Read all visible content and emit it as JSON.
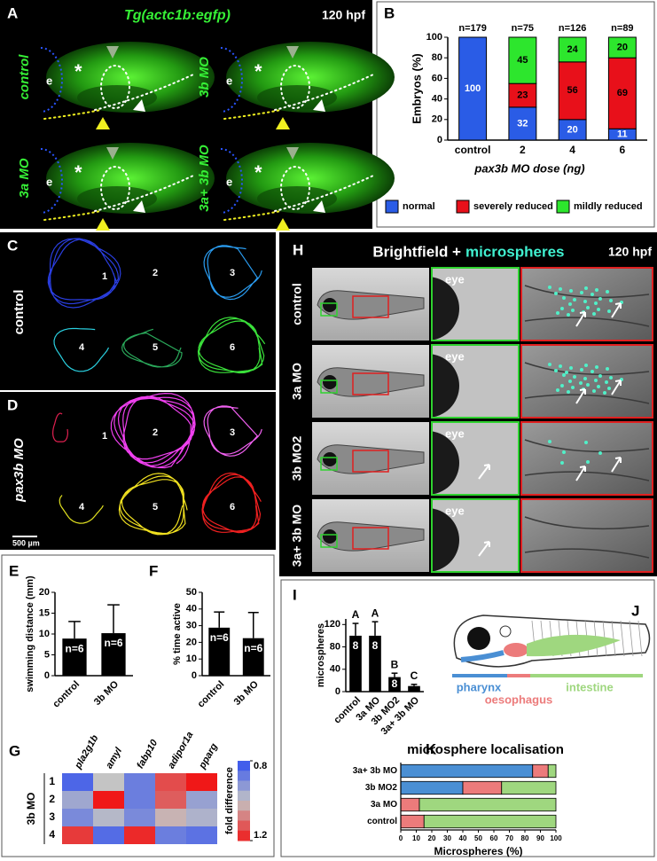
{
  "panel_a": {
    "letter": "A",
    "title": "Tg(actc1b:egfp)",
    "stage": "120 hpf",
    "rows": [
      "control",
      "3b MO",
      "3a MO",
      "3a+ 3b MO"
    ],
    "eye": "e",
    "star": "*"
  },
  "panel_c": {
    "letter": "C",
    "label": "control",
    "tracks": [
      "1",
      "2",
      "3",
      "4",
      "5",
      "6"
    ]
  },
  "panel_d": {
    "letter": "D",
    "label": "pax3b MO",
    "tracks": [
      "1",
      "2",
      "3",
      "4",
      "5",
      "6"
    ],
    "scale_bar": "500 µm"
  },
  "panel_h": {
    "letter": "H",
    "title_a": "Brightfield +",
    "title_b": "microspheres",
    "stage": "120 hpf",
    "rows": [
      "control",
      "3a MO",
      "3b MO2",
      "3a+ 3b MO"
    ],
    "eye": "eye"
  },
  "panel_j": {
    "letter": "J"
  },
  "chart_data": [
    {
      "type": "stacked_bar",
      "letter": "B",
      "ylabel": "Embryos (%)",
      "xlabel": "pax3b MO dose (ng)",
      "categories": [
        "control",
        "2",
        "4",
        "6"
      ],
      "n_labels": [
        "n=179",
        "n=75",
        "n=126",
        "n=89"
      ],
      "series": [
        {
          "name": "normal",
          "color": "#2a5ce6",
          "values": [
            100,
            32,
            20,
            11
          ]
        },
        {
          "name": "severely reduced",
          "color": "#e8101a",
          "values": [
            0,
            23,
            56,
            69
          ]
        },
        {
          "name": "mildly reduced",
          "color": "#2de62d",
          "values": [
            0,
            45,
            24,
            20
          ]
        }
      ],
      "ylim": [
        0,
        100
      ],
      "yticks": [
        0,
        20,
        40,
        60,
        80,
        100
      ],
      "legend": "bottom"
    },
    {
      "type": "bar",
      "letter": "E",
      "ylabel": "swimming distance (mm)",
      "categories": [
        "control",
        "3b MO"
      ],
      "values": [
        8.9,
        10.2
      ],
      "errors": [
        4.1,
        6.8
      ],
      "bar_labels": [
        "n=6",
        "n=6"
      ],
      "color": "#000000",
      "ylim": [
        0,
        20
      ],
      "yticks": [
        0,
        5,
        10,
        15,
        20
      ]
    },
    {
      "type": "bar",
      "letter": "F",
      "ylabel": "% time active",
      "categories": [
        "control",
        "3b MO"
      ],
      "values": [
        28.8,
        22.5
      ],
      "errors": [
        9.4,
        15.4
      ],
      "bar_labels": [
        "n=6",
        "n=6"
      ],
      "color": "#000000",
      "ylim": [
        0,
        50
      ],
      "yticks": [
        0,
        10,
        20,
        30,
        40,
        50
      ]
    },
    {
      "type": "heatmap",
      "letter": "G",
      "columns": [
        "pla2g1b",
        "amyl",
        "fabp10",
        "adipor1a",
        "pparg"
      ],
      "rows": [
        "1",
        "2",
        "3",
        "4"
      ],
      "row_title": "3b MO",
      "values": [
        [
          0.84,
          1.0,
          0.88,
          1.14,
          1.2
        ],
        [
          0.95,
          1.2,
          0.88,
          1.12,
          0.94
        ],
        [
          0.9,
          0.98,
          0.9,
          1.02,
          0.97
        ],
        [
          1.16,
          0.85,
          1.18,
          0.88,
          0.86
        ]
      ],
      "colorbar_label": "fold difference",
      "clim": [
        0.8,
        1.2
      ],
      "cticks": [
        0.8,
        1.2
      ],
      "low_color": "#2f4ff0",
      "mid_color": "#c4c4c4",
      "high_color": "#f01818"
    },
    {
      "type": "bar",
      "letter": "I",
      "ylabel": "microspheres",
      "categories": [
        "control",
        "3a MO",
        "3b MO2",
        "3a+ 3b MO"
      ],
      "values": [
        100,
        100,
        26,
        10
      ],
      "errors": [
        22,
        25,
        7,
        3
      ],
      "bar_labels": [
        "8",
        "8",
        "8",
        null
      ],
      "group_labels": [
        "A",
        "A",
        "B",
        "C"
      ],
      "color": "#000000",
      "ylim": [
        0,
        130
      ],
      "yticks": [
        0,
        40,
        80,
        120
      ]
    },
    {
      "type": "stacked_hbar",
      "letter": "K",
      "title": "microsphere localisation",
      "xlabel": "Microspheres (%)",
      "categories": [
        "control",
        "3a MO",
        "3b MO2",
        "3a+ 3b MO"
      ],
      "series": [
        {
          "name": "pharynx",
          "color": "#4a8fd4",
          "values": [
            0,
            0,
            40,
            85
          ]
        },
        {
          "name": "oesophagus",
          "color": "#ec7b7b",
          "values": [
            15,
            12,
            25,
            10
          ]
        },
        {
          "name": "intestine",
          "color": "#9fd77f",
          "values": [
            85,
            88,
            35,
            5
          ]
        }
      ],
      "xlim": [
        0,
        100
      ],
      "xticks": [
        0,
        10,
        20,
        30,
        40,
        50,
        60,
        70,
        80,
        90,
        100
      ]
    }
  ]
}
